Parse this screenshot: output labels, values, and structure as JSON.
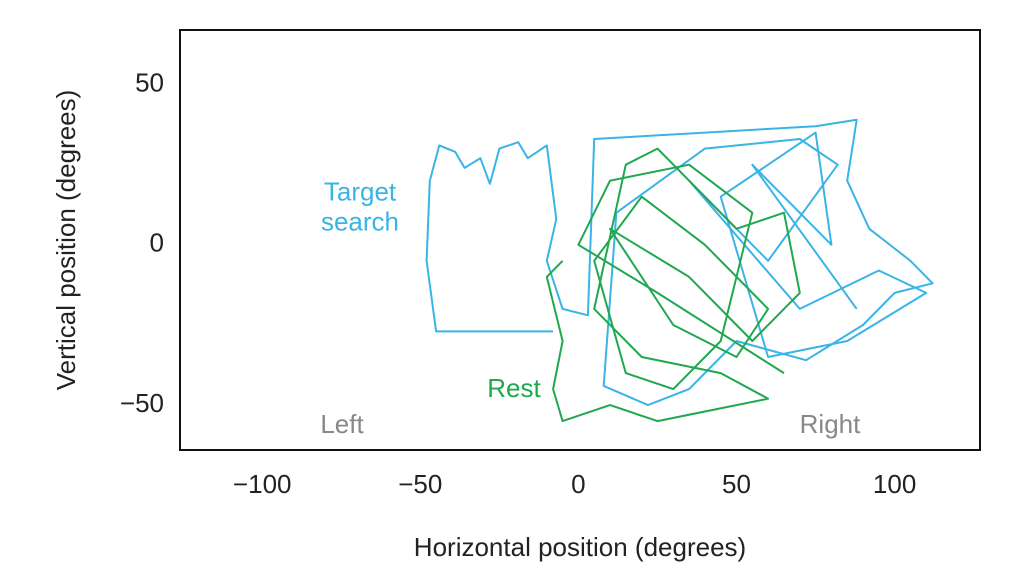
{
  "chart_data": {
    "type": "line",
    "x_label": "Horizontal position (degrees)",
    "y_label": "Vertical position (degrees)",
    "annotations": [
      "Left",
      "Right"
    ],
    "xlim": [
      -126,
      127
    ],
    "ylim": [
      -64,
      67
    ],
    "xticks": [
      {
        "value": -100,
        "label": "−100"
      },
      {
        "value": -50,
        "label": "−50"
      },
      0,
      50,
      100
    ],
    "yticks": [
      {
        "value": -50,
        "label": "−50"
      },
      0,
      50
    ],
    "series": [
      {
        "name": "Target search",
        "color": "#3ab4e6",
        "x": [
          -8,
          -45,
          -48,
          -47,
          -44,
          -39,
          -36,
          -31,
          -28,
          -25,
          -19,
          -16,
          -10,
          -7,
          -10,
          -5,
          3,
          5,
          40,
          75,
          88,
          85,
          92,
          105,
          112,
          100,
          90,
          72,
          50,
          35,
          22,
          8,
          12,
          40,
          70,
          82,
          60,
          35,
          70,
          95,
          110,
          85,
          60,
          45,
          75,
          80,
          55,
          88
        ],
        "values": [
          -27,
          -27,
          -5,
          20,
          31,
          29,
          24,
          27,
          19,
          30,
          32,
          27,
          31,
          8,
          -5,
          -20,
          -22,
          33,
          35,
          37,
          39,
          20,
          5,
          -5,
          -12,
          -15,
          -25,
          -36,
          -30,
          -45,
          -50,
          -44,
          10,
          30,
          33,
          25,
          -5,
          20,
          -20,
          -8,
          -15,
          -30,
          -35,
          15,
          35,
          0,
          25,
          -20
        ]
      },
      {
        "name": "Rest",
        "color": "#1fa84f",
        "x": [
          -5,
          -10,
          -5,
          -8,
          -5,
          10,
          25,
          40,
          60,
          45,
          20,
          5,
          15,
          25,
          35,
          50,
          65,
          70,
          55,
          35,
          10,
          30,
          50,
          60,
          40,
          20,
          5,
          15,
          30,
          45,
          55,
          35,
          10,
          0,
          25,
          65
        ],
        "values": [
          -5,
          -10,
          -30,
          -45,
          -55,
          -50,
          -55,
          -52,
          -48,
          -40,
          -35,
          -20,
          25,
          30,
          20,
          5,
          10,
          -15,
          -30,
          -10,
          5,
          -25,
          -35,
          -20,
          0,
          15,
          -5,
          -40,
          -45,
          -30,
          10,
          25,
          20,
          0,
          -15,
          -40
        ]
      }
    ]
  }
}
